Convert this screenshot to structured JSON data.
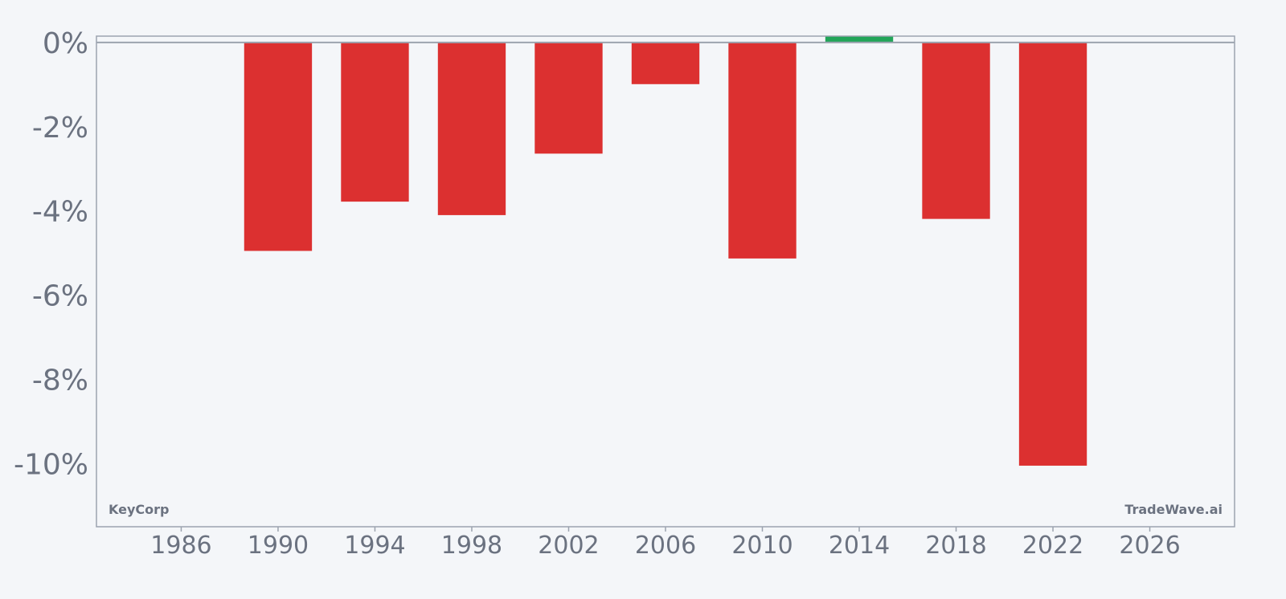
{
  "chart_data": {
    "type": "bar",
    "title": "",
    "xlabel": "",
    "ylabel": "",
    "x": [
      1990,
      1994,
      1998,
      2002,
      2006,
      2010,
      2014,
      2018,
      2022
    ],
    "values": [
      -4.95,
      -3.78,
      -4.1,
      -2.64,
      -0.99,
      -5.13,
      0.15,
      -4.19,
      -10.05
    ],
    "x_ticks": [
      1986,
      1990,
      1994,
      1998,
      2002,
      2006,
      2010,
      2014,
      2018,
      2022,
      2026
    ],
    "x_tick_labels": [
      "1986",
      "1990",
      "1994",
      "1998",
      "2002",
      "2006",
      "2010",
      "2014",
      "2018",
      "2022",
      "2026"
    ],
    "y_ticks": [
      0,
      -2,
      -4,
      -6,
      -8,
      -10
    ],
    "y_tick_labels": [
      "0%",
      "-2%",
      "-4%",
      "-6%",
      "-8%",
      "-10%"
    ],
    "xlim": [
      1982.5,
      2029.5
    ],
    "ylim": [
      -11.5,
      0.15
    ],
    "bar_width_years": 2.8,
    "grid": false,
    "legend": "none",
    "colors": {
      "negative": "#dc3030",
      "positive": "#22a559",
      "axis": "#9ca3af",
      "text": "#6b7280",
      "background": "#f4f6f9"
    }
  },
  "watermarks": {
    "left": "KeyCorp",
    "right": "TradeWave.ai"
  }
}
